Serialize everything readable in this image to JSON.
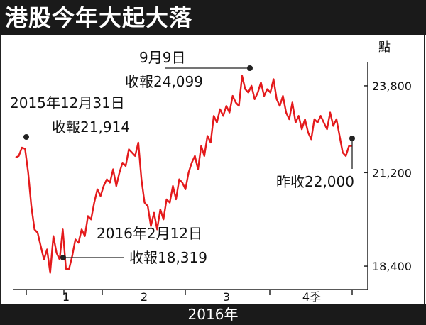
{
  "title": "港股今年大起大落",
  "footer": "2016年",
  "colors": {
    "line": "#e41a1c",
    "bars": "#1a1a1a",
    "axis": "#222222",
    "marker": "#222222"
  },
  "chart_data": {
    "type": "line",
    "title": "港股今年大起大落",
    "xlabel": "2016年",
    "ylabel": "點",
    "ylim": [
      17700,
      24500
    ],
    "y_ticks": [
      18400,
      21200,
      23800
    ],
    "y_tick_labels": [
      "18,400",
      "21,200",
      "23,800"
    ],
    "x_ticks": [
      {
        "label": "",
        "pos": 0
      },
      {
        "label": "1",
        "pos": 1
      },
      {
        "label": "2",
        "pos": 2
      },
      {
        "label": "3",
        "pos": 3
      },
      {
        "label": "4季",
        "pos": 4
      },
      {
        "label": "",
        "pos": 5
      }
    ],
    "series": [
      {
        "values": [
          21650,
          21700,
          21950,
          21914,
          21200,
          20200,
          19500,
          19400,
          19000,
          18600,
          18900,
          18200,
          19300,
          18800,
          18600,
          19500,
          18320,
          18319,
          18700,
          19200,
          19100,
          19500,
          19300,
          19900,
          19800,
          20300,
          20700,
          20500,
          20800,
          21000,
          20900,
          21300,
          20800,
          21200,
          21500,
          21400,
          21900,
          21800,
          21700,
          22100,
          21000,
          20300,
          20200,
          19600,
          20000,
          19500,
          20100,
          19800,
          20400,
          20300,
          20800,
          20400,
          21000,
          20900,
          20700,
          21200,
          21500,
          21700,
          21300,
          22000,
          21700,
          22300,
          22100,
          22900,
          22700,
          23100,
          22900,
          23200,
          23000,
          23500,
          23300,
          23200,
          24099,
          23700,
          23600,
          23800,
          23400,
          23600,
          23900,
          23500,
          23700,
          23600,
          24000,
          23400,
          23200,
          23500,
          23000,
          22800,
          23300,
          22700,
          22900,
          22500,
          22800,
          22400,
          22200,
          22800,
          22700,
          22900,
          22700,
          22500,
          23000,
          22600,
          22800,
          22300,
          21800,
          21700,
          22000,
          22000
        ]
      }
    ],
    "annotations": [
      {
        "line1": "2015年12月31日",
        "line2": "收報21,914"
      },
      {
        "line1": "2016年2月12日",
        "line2": "收報18,319"
      },
      {
        "line1": "9月9日",
        "line2": "收報24,099"
      },
      {
        "line1": "",
        "line2": "昨收22,000"
      }
    ]
  }
}
